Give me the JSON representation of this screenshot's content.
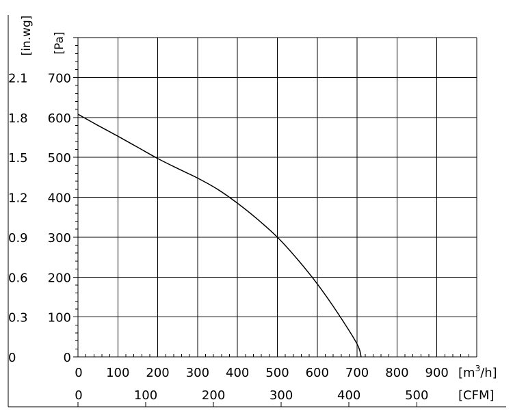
{
  "chart_data": {
    "type": "line",
    "title": "",
    "grid": true,
    "x_primary": {
      "unit_base": "[m",
      "unit_sup": "3",
      "unit_tail": "/h]",
      "range": [
        0,
        1000
      ],
      "ticks": [
        "0",
        "100",
        "200",
        "300",
        "400",
        "500",
        "600",
        "700",
        "800",
        "900"
      ]
    },
    "x_secondary": {
      "unit": "[CFM]",
      "ticks": [
        {
          "value": 0,
          "label": "0"
        },
        {
          "value": 100,
          "label": "100"
        },
        {
          "value": 200,
          "label": "200"
        },
        {
          "value": 300,
          "label": "300"
        },
        {
          "value": 400,
          "label": "400"
        },
        {
          "value": 500,
          "label": "500"
        }
      ]
    },
    "y_primary": {
      "unit": "[Pa]",
      "range": [
        0,
        800
      ],
      "ticks": [
        "0",
        "100",
        "200",
        "300",
        "400",
        "500",
        "600",
        "700"
      ]
    },
    "y_secondary": {
      "unit": "[in.wg]",
      "ticks": [
        "0",
        "0.3",
        "0.6",
        "0.9",
        "1.2",
        "1.5",
        "1.8",
        "2.1"
      ]
    },
    "series": [
      {
        "x": [
          0,
          50,
          100,
          150,
          200,
          250,
          300,
          350,
          400,
          450,
          500,
          550,
          600,
          650,
          700,
          710
        ],
        "y": [
          608,
          580,
          553,
          525,
          497,
          472,
          448,
          420,
          385,
          345,
          300,
          245,
          183,
          112,
          32,
          0
        ]
      }
    ]
  }
}
